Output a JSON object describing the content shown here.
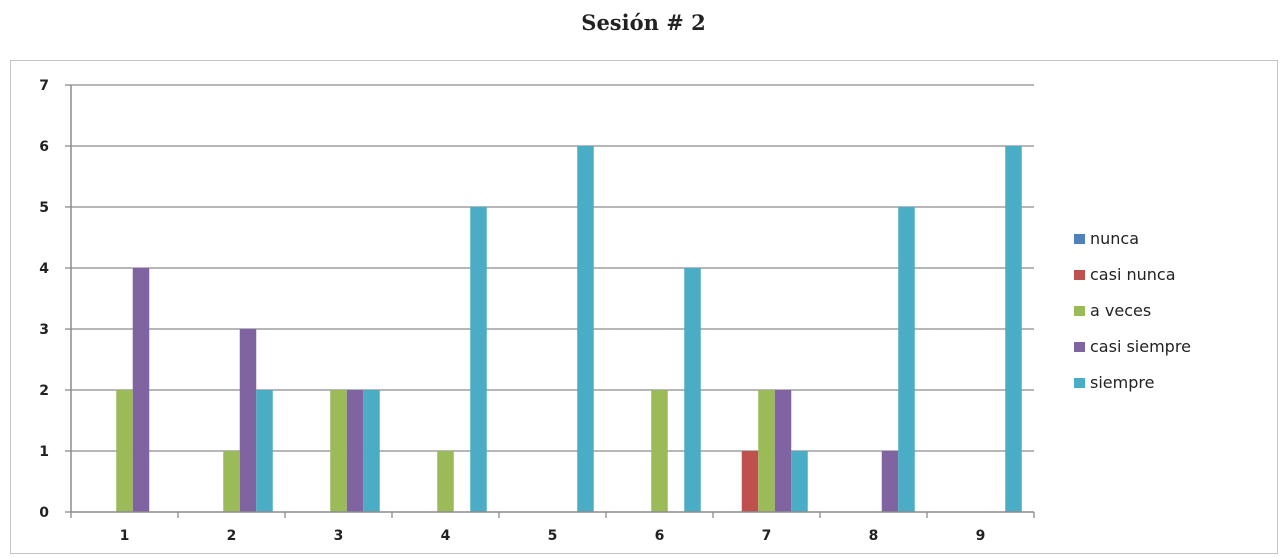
{
  "chart_data": {
    "type": "bar",
    "title": "Sesión # 2",
    "xlabel": "",
    "ylabel": "",
    "categories": [
      "1",
      "2",
      "3",
      "4",
      "5",
      "6",
      "7",
      "8",
      "9"
    ],
    "ylim": [
      0,
      7
    ],
    "yticks": [
      "0",
      "1",
      "2",
      "3",
      "4",
      "5",
      "6",
      "7"
    ],
    "grid": true,
    "legend_position": "right",
    "series": [
      {
        "name": "nunca",
        "color": "#4f81bd",
        "values": [
          0,
          0,
          0,
          0,
          0,
          0,
          0,
          0,
          0
        ]
      },
      {
        "name": "casi nunca",
        "color": "#c0504d",
        "values": [
          0,
          0,
          0,
          0,
          0,
          0,
          1,
          0,
          0
        ]
      },
      {
        "name": "a veces",
        "color": "#9bbb59",
        "values": [
          2,
          1,
          2,
          1,
          0,
          2,
          2,
          0,
          0
        ]
      },
      {
        "name": "casi siempre",
        "color": "#8064a2",
        "values": [
          4,
          3,
          2,
          0,
          0,
          0,
          2,
          1,
          0
        ]
      },
      {
        "name": "siempre",
        "color": "#4bacc6",
        "values": [
          0,
          2,
          2,
          5,
          6,
          4,
          1,
          5,
          6
        ]
      }
    ]
  }
}
